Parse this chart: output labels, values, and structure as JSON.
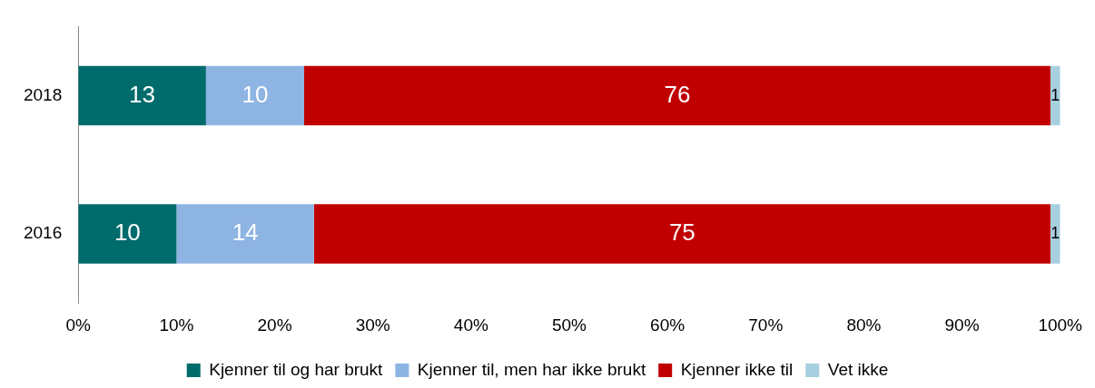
{
  "chart_data": {
    "type": "bar",
    "orientation": "horizontal",
    "stacked": true,
    "categories": [
      "2018",
      "2016"
    ],
    "series": [
      {
        "name": "Kjenner til og har brukt",
        "color": "#006b6b",
        "values": [
          13,
          10
        ]
      },
      {
        "name": "Kjenner til, men har ikke brukt",
        "color": "#8eb4e3",
        "values": [
          10,
          14
        ]
      },
      {
        "name": "Kjenner ikke til",
        "color": "#c00000",
        "values": [
          76,
          75
        ]
      },
      {
        "name": "Vet ikke",
        "color": "#a6cfe0",
        "values": [
          1,
          1
        ]
      }
    ],
    "xlim": [
      0,
      100
    ],
    "xticks": [
      {
        "value": 0,
        "label": "0%"
      },
      {
        "value": 10,
        "label": "10%"
      },
      {
        "value": 20,
        "label": "20%"
      },
      {
        "value": 30,
        "label": "30%"
      },
      {
        "value": 40,
        "label": "40%"
      },
      {
        "value": 50,
        "label": "50%"
      },
      {
        "value": 60,
        "label": "60%"
      },
      {
        "value": 70,
        "label": "70%"
      },
      {
        "value": 80,
        "label": "80%"
      },
      {
        "value": 90,
        "label": "90%"
      },
      {
        "value": 100,
        "label": "100%"
      }
    ],
    "grid": false,
    "legend": "bottom",
    "data_labels": true
  }
}
